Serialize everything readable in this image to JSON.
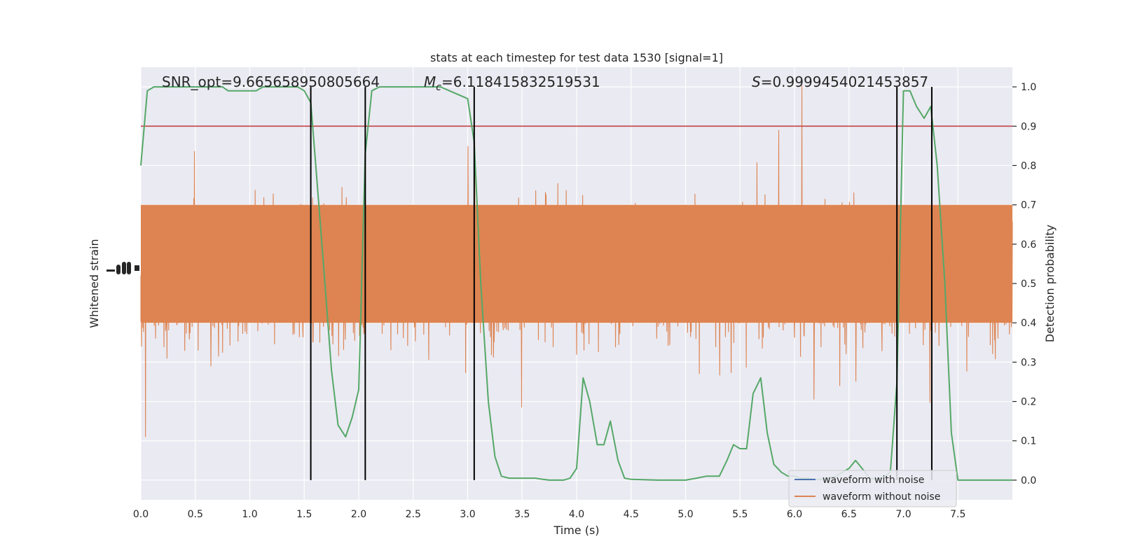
{
  "chart_data": {
    "type": "line",
    "title": "stats at each timestep for test data 1530 [signal=1]",
    "xlabel": "Time (s)",
    "ylabel_left": "Whitened strain",
    "ylabel_right": "Detection probability",
    "xlim": [
      0.0,
      8.0
    ],
    "ylim_right": [
      -0.05,
      1.05
    ],
    "x_ticks": [
      0.0,
      0.5,
      1.0,
      1.5,
      2.0,
      2.5,
      3.0,
      3.5,
      4.0,
      4.5,
      5.0,
      5.5,
      6.0,
      6.5,
      7.0,
      7.5
    ],
    "x_tick_labels": [
      "0.0",
      "0.5",
      "1.0",
      "1.5",
      "2.0",
      "2.5",
      "3.0",
      "3.5",
      "4.0",
      "4.5",
      "5.0",
      "5.5",
      "6.0",
      "6.5",
      "7.0",
      "7.5"
    ],
    "y_ticks_right": [
      0.0,
      0.1,
      0.2,
      0.3,
      0.4,
      0.5,
      0.6,
      0.7,
      0.8,
      0.9,
      1.0
    ],
    "y_tick_labels_right": [
      "0.0",
      "0.1",
      "0.2",
      "0.3",
      "0.4",
      "0.5",
      "0.6",
      "0.7",
      "0.8",
      "0.9",
      "1.0"
    ],
    "grid": true,
    "annotations": {
      "snr": "SNR_opt=9.665658950805664",
      "mc_symbol": "M",
      "mc_sub": "c",
      "mc_value": "=6.118415832519531",
      "s_symbol": "S",
      "s_value": "=0.9999454021453857"
    },
    "threshold": {
      "y": 0.9,
      "color": "#c44e52"
    },
    "vertical_lines": [
      1.56,
      2.06,
      3.06,
      6.94,
      7.26
    ],
    "legend": {
      "position": "lower-right",
      "entries": [
        {
          "label": "waveform with noise",
          "color": "#4c72b0"
        },
        {
          "label": "waveform without noise",
          "color": "#dd8452"
        }
      ]
    },
    "series": [
      {
        "name": "waveform with noise",
        "color": "#4c72b0"
      },
      {
        "name": "waveform without noise",
        "color": "#dd8452"
      },
      {
        "color": "#55a868",
        "x": [
          0.0,
          0.06,
          0.12,
          0.25,
          0.5,
          0.75,
          0.8,
          0.95,
          1.0,
          1.06,
          1.12,
          1.25,
          1.3,
          1.38,
          1.44,
          1.5,
          1.56,
          1.62,
          1.69,
          1.75,
          1.81,
          1.88,
          1.94,
          2.0,
          2.06,
          2.12,
          2.19,
          2.25,
          2.5,
          2.75,
          3.0,
          3.06,
          3.12,
          3.19,
          3.25,
          3.31,
          3.38,
          3.44,
          3.5,
          3.56,
          3.62,
          3.69,
          3.75,
          3.81,
          3.88,
          3.94,
          4.0,
          4.06,
          4.12,
          4.19,
          4.25,
          4.31,
          4.38,
          4.44,
          4.5,
          4.75,
          5.0,
          5.1,
          5.19,
          5.25,
          5.31,
          5.38,
          5.44,
          5.5,
          5.56,
          5.62,
          5.69,
          5.75,
          5.81,
          5.88,
          5.94,
          6.0,
          6.06,
          6.12,
          6.19,
          6.25,
          6.31,
          6.38,
          6.44,
          6.5,
          6.56,
          6.62,
          6.69,
          6.75,
          6.81,
          6.88,
          6.94,
          7.0,
          7.06,
          7.12,
          7.19,
          7.25,
          7.31,
          7.38,
          7.44,
          7.5,
          7.75,
          8.0
        ],
        "y": [
          0.8,
          0.99,
          1.0,
          1.0,
          1.0,
          1.0,
          0.99,
          0.99,
          0.99,
          0.99,
          1.0,
          1.0,
          1.0,
          1.0,
          1.0,
          0.99,
          0.96,
          0.75,
          0.5,
          0.28,
          0.14,
          0.11,
          0.16,
          0.23,
          0.83,
          0.99,
          1.0,
          1.0,
          1.0,
          1.0,
          0.97,
          0.86,
          0.5,
          0.2,
          0.06,
          0.01,
          0.005,
          0.005,
          0.005,
          0.005,
          0.005,
          0.002,
          0.0,
          0.0,
          0.0,
          0.005,
          0.03,
          0.26,
          0.2,
          0.09,
          0.09,
          0.15,
          0.05,
          0.005,
          0.002,
          0.0,
          0.0,
          0.005,
          0.01,
          0.01,
          0.01,
          0.05,
          0.09,
          0.08,
          0.08,
          0.22,
          0.26,
          0.12,
          0.04,
          0.02,
          0.01,
          0.01,
          0.005,
          0.005,
          0.002,
          0.002,
          0.005,
          0.01,
          0.02,
          0.03,
          0.05,
          0.03,
          0.005,
          0.002,
          0.005,
          0.02,
          0.25,
          0.99,
          0.99,
          0.95,
          0.92,
          0.95,
          0.8,
          0.5,
          0.12,
          0.0,
          0.0,
          0.0
        ]
      }
    ]
  }
}
